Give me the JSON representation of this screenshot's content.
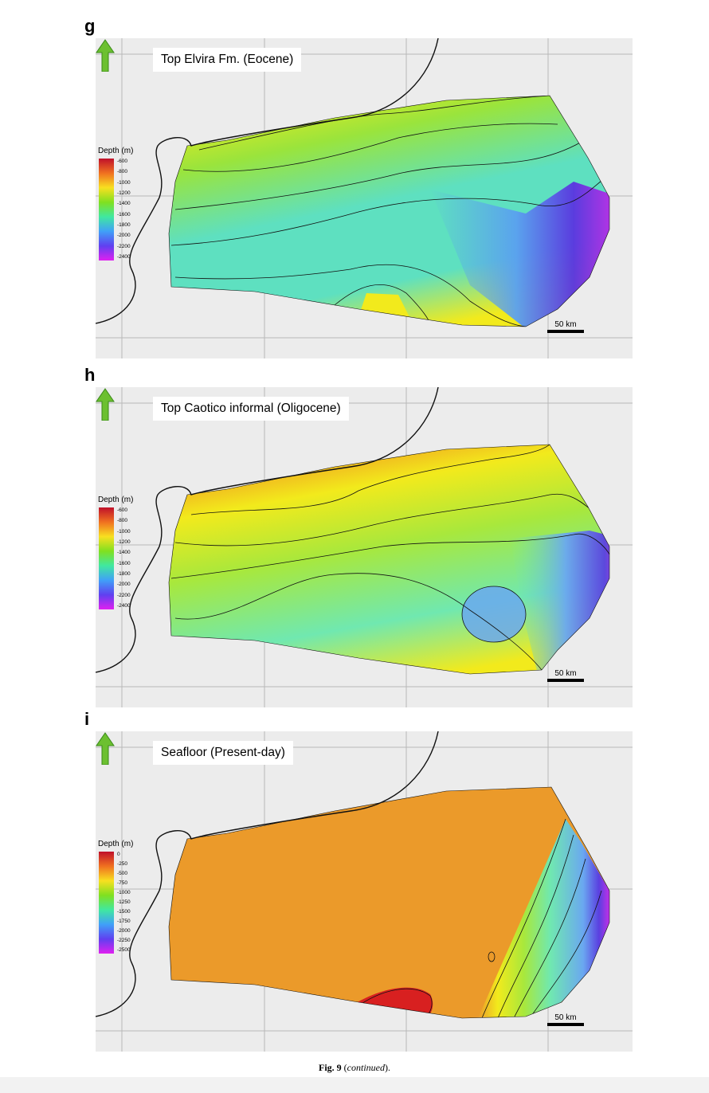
{
  "panels": [
    {
      "letter": "g",
      "title": "Top Elvira Fm. (Eocene)",
      "legend": {
        "title": "Depth (m)",
        "ticks": [
          "-600",
          "-800",
          "-1000",
          "-1200",
          "-1400",
          "-1600",
          "-1800",
          "-2000",
          "-2200",
          "-2400"
        ],
        "colors": [
          "#c0102a",
          "#f07020",
          "#f8e020",
          "#80e020",
          "#40e8a0",
          "#40a0f8",
          "#6040f0",
          "#e020f0"
        ]
      },
      "scale_label": "50 km",
      "colors": {
        "shallow": "#d01818",
        "mid": "#f0a020",
        "yellow": "#f2ea1c",
        "green": "#9ae43c",
        "teal": "#5ee0c0",
        "blue": "#5aa0f0",
        "deep": "#5a34e0",
        "deepest": "#d028e8"
      }
    },
    {
      "letter": "h",
      "title": "Top Caotico informal (Oligocene)",
      "legend": {
        "title": "Depth (m)",
        "ticks": [
          "-600",
          "-800",
          "-1000",
          "-1200",
          "-1400",
          "-1600",
          "-1800",
          "-2000",
          "-2200",
          "-2400"
        ],
        "colors": [
          "#c0102a",
          "#f07020",
          "#f8e020",
          "#80e020",
          "#40e8a0",
          "#40a0f8",
          "#6040f0",
          "#e020f0"
        ]
      },
      "scale_label": "50 km",
      "colors": {
        "shallow": "#d01818",
        "mid": "#f0a020",
        "yellow": "#f2ea1c",
        "green": "#a8e83c",
        "teal": "#70e8b0",
        "blue": "#6aa8f0",
        "deep": "#5a40e0",
        "deepest": "#c030e8"
      }
    },
    {
      "letter": "i",
      "title": "Seafloor (Present-day)",
      "legend": {
        "title": "Depth (m)",
        "ticks": [
          "0",
          "-250",
          "-500",
          "-750",
          "-1000",
          "-1250",
          "-1500",
          "-1750",
          "-2000",
          "-2250",
          "-2500"
        ],
        "colors": [
          "#c0102a",
          "#f07020",
          "#f8e020",
          "#80e020",
          "#40e8a0",
          "#40a0f8",
          "#6040f0",
          "#e020f0"
        ]
      },
      "scale_label": "50 km",
      "colors": {
        "shallow": "#d82020",
        "mid": "#eb9a2a",
        "yellow": "#f2ea1c",
        "green": "#a8e83c",
        "teal": "#70e8b0",
        "blue": "#6aa8f0",
        "deep": "#5a40e0",
        "deepest": "#c030e8"
      }
    }
  ],
  "caption": {
    "fig": "Fig. 9",
    "open": " (",
    "continued": "continued",
    "close": ")."
  }
}
